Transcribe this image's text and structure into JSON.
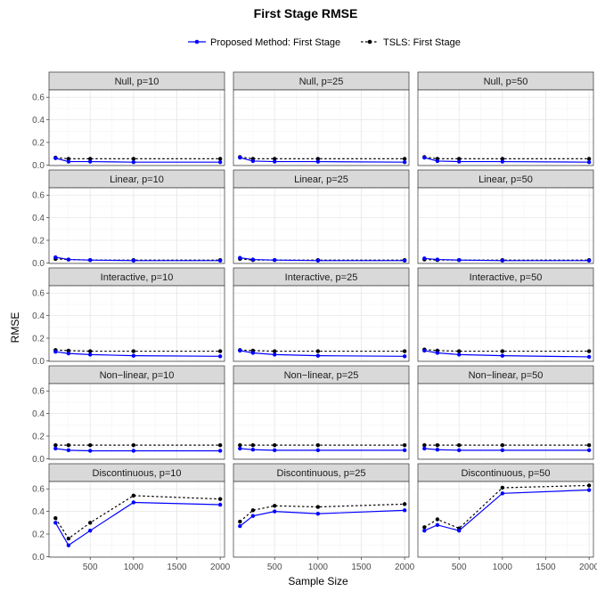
{
  "chart_data": {
    "type": "line",
    "title": "First Stage RMSE",
    "xlabel": "Sample Size",
    "ylabel": "RMSE",
    "x": [
      100,
      250,
      500,
      1000,
      2000
    ],
    "xlim": [
      25,
      2050
    ],
    "ylim": [
      -0.005,
      0.665
    ],
    "x_ticks": [
      500,
      1000,
      1500,
      2000
    ],
    "x_tick_labels": [
      "500",
      "1000",
      "1500",
      "2000"
    ],
    "y_ticks": [
      0.0,
      0.2,
      0.4,
      0.6
    ],
    "y_tick_labels": [
      "0.0",
      "0.2",
      "0.4",
      "0.6"
    ],
    "legend": {
      "position": "top"
    },
    "grid": true,
    "series_styles": [
      {
        "name": "Proposed Method: First Stage",
        "color": "#0000ff",
        "dash": "solid"
      },
      {
        "name": "TSLS: First Stage",
        "color": "#000000",
        "dash": "dotted"
      }
    ],
    "rows": [
      "Null",
      "Linear",
      "Interactive",
      "Non−linear",
      "Discontinuous"
    ],
    "cols": [
      "p=10",
      "p=25",
      "p=50"
    ],
    "panels": [
      {
        "label": "Null, p=10",
        "proposed": [
          0.06,
          0.03,
          0.03,
          0.025,
          0.025
        ],
        "tsls": [
          0.065,
          0.055,
          0.055,
          0.055,
          0.055
        ]
      },
      {
        "label": "Null, p=25",
        "proposed": [
          0.065,
          0.035,
          0.03,
          0.03,
          0.025
        ],
        "tsls": [
          0.07,
          0.055,
          0.055,
          0.055,
          0.055
        ]
      },
      {
        "label": "Null, p=50",
        "proposed": [
          0.065,
          0.035,
          0.03,
          0.03,
          0.025
        ],
        "tsls": [
          0.07,
          0.055,
          0.055,
          0.055,
          0.055
        ]
      },
      {
        "label": "Linear, p=10",
        "proposed": [
          0.05,
          0.03,
          0.025,
          0.02,
          0.02
        ],
        "tsls": [
          0.035,
          0.03,
          0.025,
          0.025,
          0.025
        ]
      },
      {
        "label": "Linear, p=25",
        "proposed": [
          0.045,
          0.03,
          0.025,
          0.02,
          0.02
        ],
        "tsls": [
          0.035,
          0.025,
          0.025,
          0.025,
          0.025
        ]
      },
      {
        "label": "Linear, p=50",
        "proposed": [
          0.04,
          0.03,
          0.025,
          0.02,
          0.02
        ],
        "tsls": [
          0.03,
          0.025,
          0.025,
          0.025,
          0.025
        ]
      },
      {
        "label": "Interactive, p=10",
        "proposed": [
          0.08,
          0.065,
          0.055,
          0.045,
          0.04
        ],
        "tsls": [
          0.095,
          0.09,
          0.085,
          0.085,
          0.085
        ]
      },
      {
        "label": "Interactive, p=25",
        "proposed": [
          0.09,
          0.07,
          0.055,
          0.045,
          0.04
        ],
        "tsls": [
          0.095,
          0.09,
          0.085,
          0.085,
          0.085
        ]
      },
      {
        "label": "Interactive, p=50",
        "proposed": [
          0.09,
          0.07,
          0.055,
          0.045,
          0.035
        ],
        "tsls": [
          0.1,
          0.09,
          0.085,
          0.085,
          0.085
        ]
      },
      {
        "label": "Non−linear, p=10",
        "proposed": [
          0.09,
          0.075,
          0.07,
          0.07,
          0.07
        ],
        "tsls": [
          0.12,
          0.12,
          0.12,
          0.12,
          0.12
        ]
      },
      {
        "label": "Non−linear, p=25",
        "proposed": [
          0.09,
          0.08,
          0.075,
          0.075,
          0.075
        ],
        "tsls": [
          0.12,
          0.12,
          0.12,
          0.12,
          0.12
        ]
      },
      {
        "label": "Non−linear, p=50",
        "proposed": [
          0.09,
          0.08,
          0.075,
          0.075,
          0.075
        ],
        "tsls": [
          0.12,
          0.12,
          0.12,
          0.12,
          0.12
        ]
      },
      {
        "label": "Discontinuous, p=10",
        "proposed": [
          0.3,
          0.1,
          0.23,
          0.48,
          0.46
        ],
        "tsls": [
          0.34,
          0.16,
          0.3,
          0.54,
          0.51
        ]
      },
      {
        "label": "Discontinuous, p=25",
        "proposed": [
          0.27,
          0.36,
          0.4,
          0.38,
          0.41
        ],
        "tsls": [
          0.31,
          0.41,
          0.45,
          0.44,
          0.465
        ]
      },
      {
        "label": "Discontinuous, p=50",
        "proposed": [
          0.23,
          0.28,
          0.23,
          0.56,
          0.59
        ],
        "tsls": [
          0.26,
          0.33,
          0.25,
          0.61,
          0.63
        ]
      }
    ]
  }
}
